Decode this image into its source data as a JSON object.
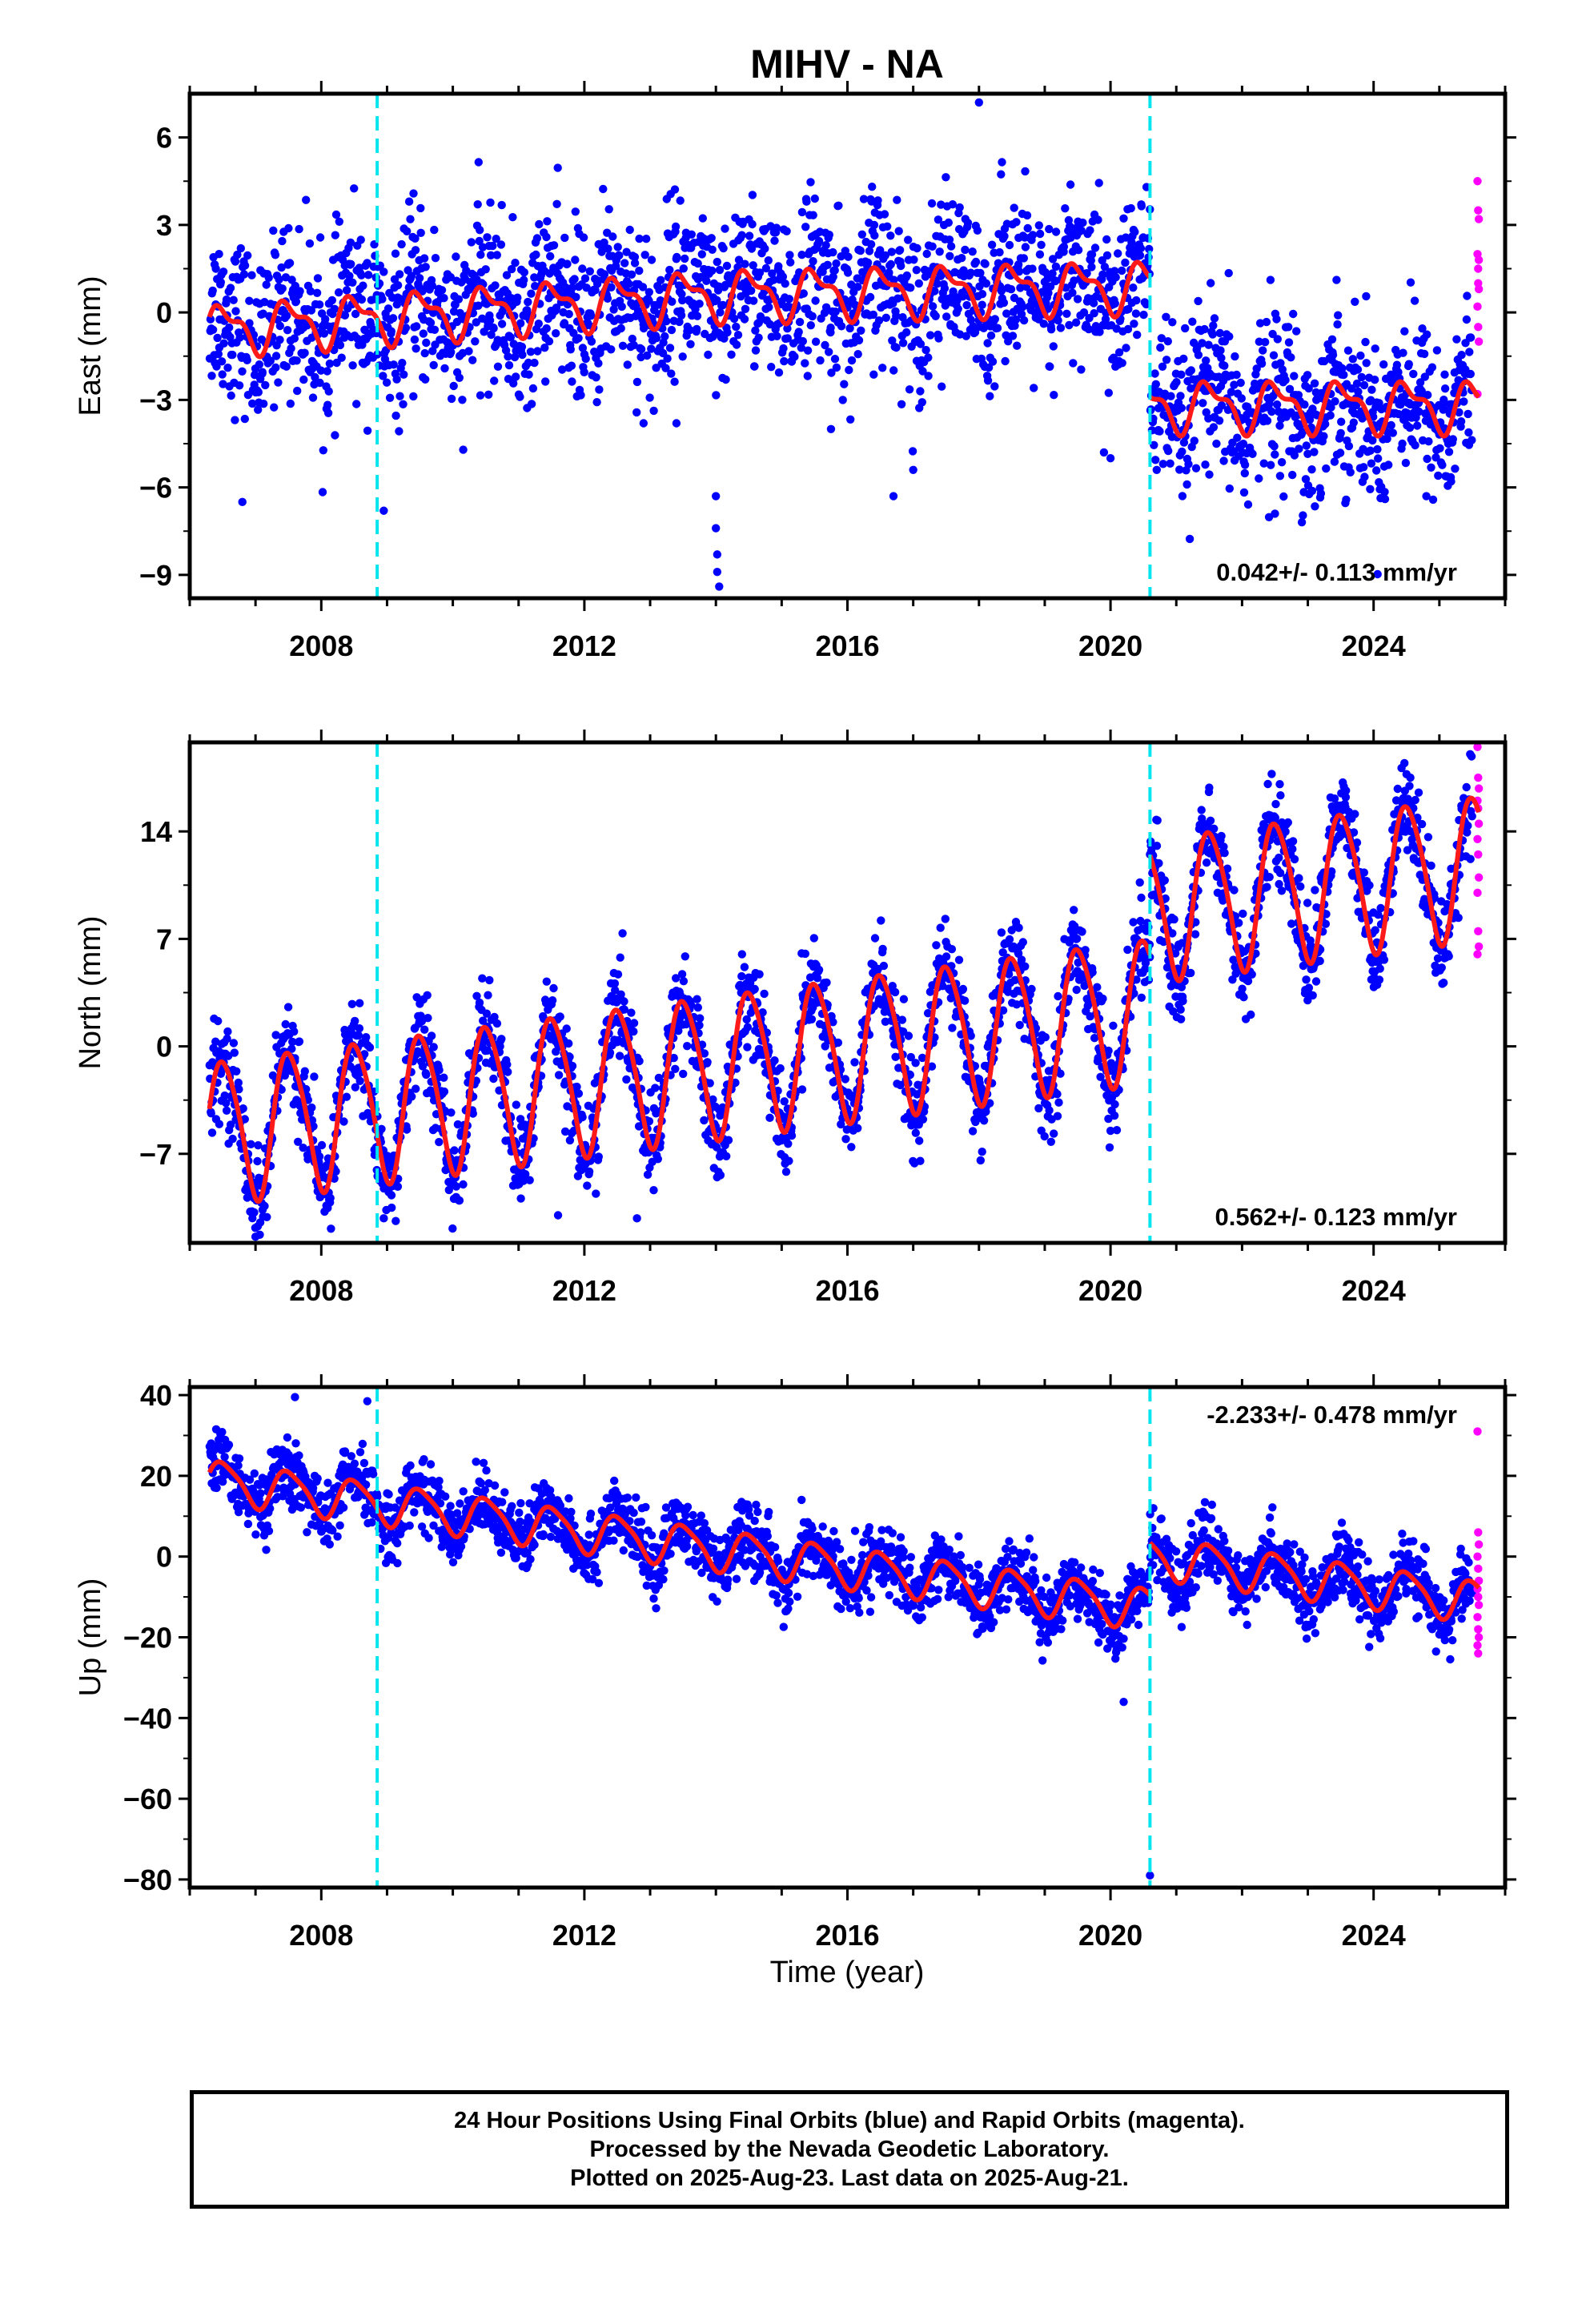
{
  "chart_data": [
    {
      "type": "scatter",
      "title": "MIHV - NA",
      "ylabel": "East (mm)",
      "xlabel": "",
      "xlim": [
        2006.0,
        2026.0
      ],
      "ylim": [
        -9.8,
        7.5
      ],
      "yticks": [
        6,
        3,
        0,
        -3,
        -6,
        -9
      ],
      "ytick_labels": [
        "6",
        "3",
        "0",
        "−3",
        "−6",
        "−9"
      ],
      "xticks": [
        2008,
        2012,
        2016,
        2020,
        2024
      ],
      "xtick_labels": [
        "2008",
        "2012",
        "2016",
        "2020",
        "2024"
      ],
      "rate_label": "0.042+/- 0.113 mm/yr",
      "equipment_changes": [
        2008.85,
        2020.6
      ],
      "model": {
        "segments": [
          {
            "x0": 2006.3,
            "x1": 2020.6,
            "offset": 0.0,
            "trend": 0.042,
            "annual": 0.75,
            "semi": 0.35,
            "step": 0.0
          },
          {
            "x0": 2020.6,
            "x1": 2025.6,
            "offset": 0.0,
            "trend": 0.042,
            "annual": 0.75,
            "semi": 0.35,
            "step": -3.2
          }
        ],
        "base_level": 0.0,
        "ramp": [
          [
            2006.3,
            -0.6
          ],
          [
            2014.0,
            0.6
          ],
          [
            2020.5,
            0.9
          ]
        ]
      },
      "final_orbits": {
        "x0": 2006.3,
        "x1": 2025.5,
        "scatter": 1.4
      },
      "rapid_orbits": {
        "x": 2025.58,
        "values": [
          4.5,
          3.5,
          3.2,
          2.0,
          1.5,
          0.8,
          0.2,
          -0.5,
          -1.0,
          -2.8,
          1.0,
          1.8
        ]
      },
      "outliers": [
        [
          2006.8,
          -6.5
        ],
        [
          2008.95,
          -6.8
        ],
        [
          2013.4,
          -3.8
        ],
        [
          2014.0,
          -6.3
        ],
        [
          2014.0,
          -7.4
        ],
        [
          2014.02,
          -8.3
        ],
        [
          2014.02,
          -8.9
        ],
        [
          2014.05,
          -9.4
        ],
        [
          2015.75,
          -4.0
        ],
        [
          2016.7,
          -6.3
        ],
        [
          2017.0,
          -5.4
        ],
        [
          2018.0,
          7.2
        ],
        [
          2019.9,
          -4.8
        ],
        [
          2020.0,
          -5.0
        ],
        [
          2022.5,
          -6.9
        ],
        [
          2012.9,
          -3.8
        ]
      ]
    },
    {
      "type": "scatter",
      "ylabel": "North (mm)",
      "xlabel": "",
      "xlim": [
        2006.0,
        2026.0
      ],
      "ylim": [
        -12.8,
        19.8
      ],
      "yticks": [
        14,
        7,
        0,
        -7
      ],
      "ytick_labels": [
        "14",
        "7",
        "0",
        "−7"
      ],
      "xticks": [
        2008,
        2012,
        2016,
        2020,
        2024
      ],
      "xtick_labels": [
        "2008",
        "2012",
        "2016",
        "2020",
        "2024"
      ],
      "rate_label": "0.562+/- 0.123 mm/yr",
      "equipment_changes": [
        2008.85,
        2020.6
      ],
      "model": {
        "segments": [
          {
            "x0": 2006.3,
            "x1": 2020.6,
            "offset": -5.5,
            "trend": 0.562,
            "annual": 4.6,
            "semi": 0.6,
            "step": 0.0
          },
          {
            "x0": 2020.6,
            "x1": 2025.6,
            "offset": -5.5,
            "trend": 0.562,
            "annual": 4.6,
            "semi": 0.6,
            "step": 6.5
          }
        ],
        "base_level": 0.0,
        "ramp": []
      },
      "final_orbits": {
        "x0": 2006.3,
        "x1": 2025.5,
        "scatter": 1.5
      },
      "rapid_orbits": {
        "x": 2025.58,
        "values": [
          19.5,
          17.5,
          16.8,
          16.0,
          15.5,
          14.5,
          13.5,
          12.5,
          11.0,
          10.0,
          7.5,
          6.5,
          6.0
        ]
      },
      "outliers": [
        [
          2007.0,
          -12.4
        ],
        [
          2008.95,
          -11.2
        ],
        [
          2011.6,
          -11.0
        ],
        [
          2012.8,
          -11.2
        ],
        [
          2020.0,
          -5.5
        ],
        [
          2020.6,
          12.5
        ]
      ]
    },
    {
      "type": "scatter",
      "ylabel": "Up (mm)",
      "xlabel": "Time (year)",
      "xlim": [
        2006.0,
        2026.0
      ],
      "ylim": [
        -82.0,
        42.0
      ],
      "yticks": [
        40,
        20,
        0,
        -20,
        -40,
        -60,
        -80
      ],
      "ytick_labels": [
        "40",
        "20",
        "0",
        "−20",
        "−40",
        "−60",
        "−80"
      ],
      "xticks": [
        2008,
        2012,
        2016,
        2020,
        2024
      ],
      "xtick_labels": [
        "2008",
        "2012",
        "2016",
        "2020",
        "2024"
      ],
      "rate_label": "-2.233+/- 0.478 mm/yr",
      "equipment_changes": [
        2008.85,
        2020.6
      ],
      "model": {
        "segments": [
          {
            "x0": 2006.3,
            "x1": 2020.6,
            "offset": 19.0,
            "trend": -2.233,
            "annual": 5.0,
            "semi": 1.0,
            "step": 0.0
          },
          {
            "x0": 2020.6,
            "x1": 2025.6,
            "offset": 19.0,
            "trend": -2.233,
            "annual": 5.0,
            "semi": 1.0,
            "step": 13.0
          }
        ],
        "base_level": 0.0,
        "ramp": []
      },
      "final_orbits": {
        "x0": 2006.3,
        "x1": 2025.5,
        "scatter": 4.0
      },
      "rapid_orbits": {
        "x": 2025.58,
        "values": [
          31.0,
          6.0,
          3.0,
          0.0,
          -3.0,
          -6.0,
          -8.0,
          -10.0,
          -12.0,
          -15.0,
          -18.0,
          -20.0,
          -22.0,
          -24.0
        ]
      },
      "outliers": [
        [
          2008.7,
          38.5
        ],
        [
          2007.6,
          39.5
        ],
        [
          2020.6,
          -79.0
        ],
        [
          2020.2,
          -36.0
        ]
      ]
    }
  ],
  "colors": {
    "final_orbits": "#0000ff",
    "rapid_orbits": "#ff00ff",
    "model": "#ff1a1a",
    "equipment_change": "#00e5ee",
    "frame": "#000000"
  },
  "footer": {
    "line1": "24 Hour Positions Using Final Orbits (blue) and Rapid Orbits (magenta).",
    "line2": "Processed by the Nevada Geodetic Laboratory.",
    "line3": "Plotted on 2025-Aug-23. Last data on 2025-Aug-21."
  }
}
